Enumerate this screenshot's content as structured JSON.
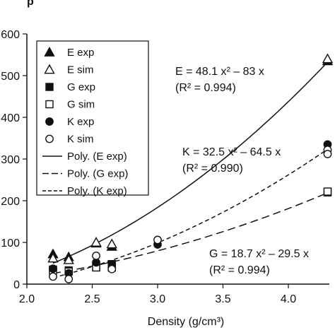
{
  "header_fragment": "p",
  "chart_data": {
    "type": "scatter",
    "xlabel": "Density (g/cm³)",
    "ylabel": "",
    "xlim": [
      2.0,
      4.35
    ],
    "ylim": [
      0,
      600
    ],
    "x_ticks": [
      "2.0",
      "2.5",
      "3.0",
      "3.5",
      "4.0"
    ],
    "x_tick_values": [
      2.0,
      2.5,
      3.0,
      3.5,
      4.0
    ],
    "y_ticks": [
      "0",
      "100",
      "200",
      "300",
      "400",
      "500",
      "600"
    ],
    "y_tick_values": [
      0,
      100,
      200,
      300,
      400,
      500,
      600
    ],
    "grid": false,
    "legend_position": "top-left",
    "series": [
      {
        "name": "E exp",
        "marker": "triangle-filled",
        "points": [
          [
            2.2,
            72
          ],
          [
            2.32,
            65
          ],
          [
            2.53,
            98
          ],
          [
            2.65,
            90
          ],
          [
            4.3,
            535
          ]
        ]
      },
      {
        "name": "E sim",
        "marker": "triangle-open",
        "points": [
          [
            2.2,
            62
          ],
          [
            2.32,
            58
          ],
          [
            2.53,
            100
          ],
          [
            2.65,
            96
          ],
          [
            4.3,
            540
          ]
        ]
      },
      {
        "name": "G exp",
        "marker": "square-filled",
        "points": [
          [
            2.2,
            35
          ],
          [
            2.32,
            33
          ],
          [
            2.53,
            40
          ],
          [
            2.65,
            48
          ],
          [
            4.3,
            220
          ]
        ]
      },
      {
        "name": "G sim",
        "marker": "square-open",
        "points": [
          [
            2.2,
            32
          ],
          [
            2.32,
            30
          ],
          [
            2.53,
            40
          ],
          [
            2.65,
            40
          ],
          [
            4.3,
            222
          ]
        ]
      },
      {
        "name": "K exp",
        "marker": "circle-filled",
        "points": [
          [
            2.2,
            37
          ],
          [
            2.32,
            26
          ],
          [
            2.53,
            52
          ],
          [
            2.65,
            40
          ],
          [
            3.0,
            95
          ],
          [
            4.3,
            335
          ]
        ]
      },
      {
        "name": "K sim",
        "marker": "circle-open",
        "points": [
          [
            2.2,
            18
          ],
          [
            2.32,
            12
          ],
          [
            2.53,
            68
          ],
          [
            2.65,
            36
          ],
          [
            3.0,
            106
          ],
          [
            4.3,
            322
          ],
          [
            4.3,
            312
          ]
        ]
      }
    ],
    "fits": [
      {
        "name": "Poly. (E exp)",
        "style": "solid",
        "a": 48.1,
        "b": -83,
        "xrange": [
          2.2,
          4.3
        ]
      },
      {
        "name": "Poly. (G exp)",
        "style": "long-dash",
        "a": 18.7,
        "b": -29.5,
        "xrange": [
          2.2,
          4.3
        ]
      },
      {
        "name": "Poly. (K exp)",
        "style": "short-dash",
        "a": 32.5,
        "b": -64.5,
        "xrange": [
          2.2,
          4.3
        ]
      }
    ],
    "annotations": [
      {
        "eq": "E = 48.1 x² – 83 x",
        "r2": "(R² = 0.994)"
      },
      {
        "eq": "K = 32.5 x² – 64.5 x",
        "r2": "(R² = 0.990)"
      },
      {
        "eq": "G = 18.7 x² – 29.5 x",
        "r2": "(R² = 0.994)"
      }
    ]
  }
}
